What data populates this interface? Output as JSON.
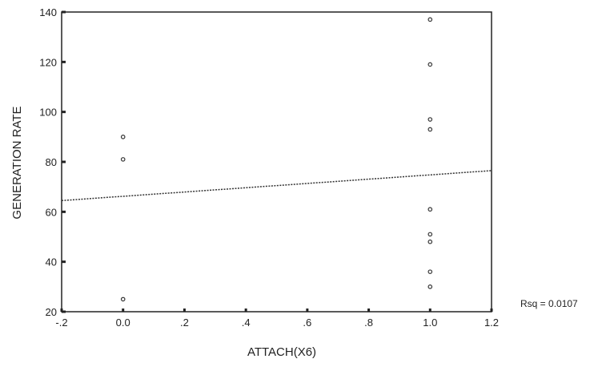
{
  "chart_data": {
    "type": "scatter",
    "title": "",
    "xlabel": "ATTACH(X6)",
    "ylabel": "GENERATION RATE",
    "xlim": [
      -0.2,
      1.2
    ],
    "ylim": [
      20,
      140
    ],
    "x_ticks": [
      -0.2,
      0.0,
      0.2,
      0.4,
      0.6,
      0.8,
      1.0,
      1.2
    ],
    "x_tick_labels": [
      "-.2",
      "0.0",
      ".2",
      ".4",
      ".6",
      ".8",
      "1.0",
      "1.2"
    ],
    "y_ticks": [
      20,
      40,
      60,
      80,
      100,
      120,
      140
    ],
    "y_tick_labels": [
      "20",
      "40",
      "60",
      "80",
      "100",
      "120",
      "140"
    ],
    "points": [
      {
        "x": 0.0,
        "y": 90
      },
      {
        "x": 0.0,
        "y": 81
      },
      {
        "x": 0.0,
        "y": 25
      },
      {
        "x": 1.0,
        "y": 137
      },
      {
        "x": 1.0,
        "y": 119
      },
      {
        "x": 1.0,
        "y": 97
      },
      {
        "x": 1.0,
        "y": 93
      },
      {
        "x": 1.0,
        "y": 61
      },
      {
        "x": 1.0,
        "y": 51
      },
      {
        "x": 1.0,
        "y": 48
      },
      {
        "x": 1.0,
        "y": 36
      },
      {
        "x": 1.0,
        "y": 30
      }
    ],
    "fit_line": {
      "x": [
        -0.2,
        1.2
      ],
      "y": [
        64.5,
        76.5
      ]
    },
    "annotation": "Rsq = 0.0107",
    "grid": false,
    "legend": "none"
  }
}
